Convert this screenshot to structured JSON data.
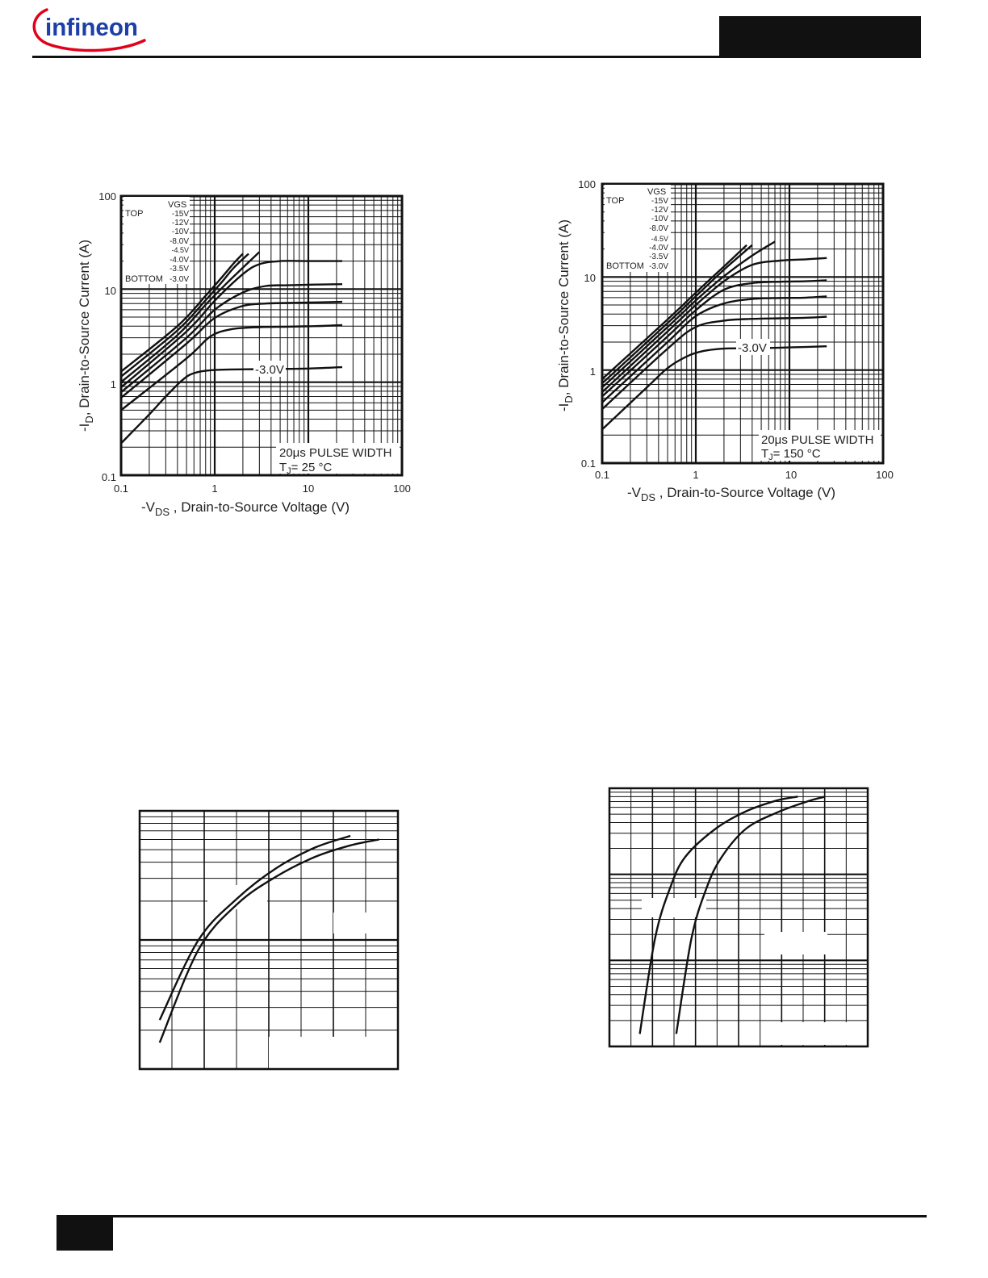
{
  "header": {
    "logo_text": "infineon",
    "brand_red": "#e2001a",
    "brand_blue": "#1c3fa8"
  },
  "chart_data": [
    {
      "type": "line",
      "xscale": "log",
      "yscale": "log",
      "xlim": [
        0.1,
        100
      ],
      "ylim": [
        0.1,
        100
      ],
      "x_ticks": [
        "0.1",
        "1",
        "10",
        "100"
      ],
      "y_ticks": [
        "0.1",
        "1",
        "10",
        "100"
      ],
      "xlabel_prefix": "-V",
      "xlabel_sub": "DS",
      "xlabel_suffix": " , Drain-to-Source Voltage (V)",
      "ylabel_prefix": "-I",
      "ylabel_sub": "D",
      "ylabel_suffix": ",  Drain-to-Source Current (A)",
      "legend": {
        "header": "VGS",
        "top_label": "TOP",
        "bottom_label": "BOTTOM",
        "entries": [
          "-15V",
          "-12V",
          "-10V",
          "-8.0V",
          "-4.5V",
          "-4.0V",
          "-3.5V",
          "-3.0V"
        ]
      },
      "annotation_line1": "20μs PULSE WIDTH",
      "annotation_line2_prefix": "T",
      "annotation_line2_sub": "J",
      "annotation_line2_suffix": "= 25 °C",
      "curve_label": "-3.0V",
      "series": [
        {
          "x": [
            0.1,
            0.4,
            0.8,
            1.2,
            1.6,
            2.0
          ],
          "y": [
            1.3,
            4.0,
            8.5,
            13.5,
            19.0,
            24.0
          ]
        },
        {
          "x": [
            0.1,
            0.4,
            0.8,
            1.2,
            1.6,
            2.3
          ],
          "y": [
            1.15,
            3.6,
            7.6,
            12.0,
            17.0,
            24.0
          ]
        },
        {
          "x": [
            0.1,
            0.4,
            0.8,
            1.3,
            2.0,
            3.0
          ],
          "y": [
            1.0,
            3.2,
            6.8,
            11.2,
            17.0,
            25.0
          ]
        },
        {
          "x": [
            0.1,
            0.5,
            1.0,
            2.0,
            3.0,
            5.0,
            10.0,
            23.0
          ],
          "y": [
            0.88,
            3.5,
            7.5,
            14.5,
            18.5,
            20.0,
            20.0,
            20.0
          ]
        },
        {
          "x": [
            0.1,
            0.5,
            1.0,
            2.0,
            3.5,
            6.0,
            12.0,
            23.0
          ],
          "y": [
            0.78,
            3.0,
            6.0,
            9.2,
            10.8,
            11.0,
            11.2,
            11.3
          ]
        },
        {
          "x": [
            0.1,
            0.5,
            1.0,
            2.0,
            3.5,
            6.0,
            12.0,
            23.0
          ],
          "y": [
            0.68,
            2.6,
            4.9,
            6.6,
            7.0,
            7.1,
            7.2,
            7.3
          ]
        },
        {
          "x": [
            0.1,
            0.5,
            0.9,
            1.5,
            3.0,
            6.0,
            12.0,
            23.0
          ],
          "y": [
            0.5,
            1.8,
            3.1,
            3.7,
            3.9,
            3.95,
            4.0,
            4.1
          ]
        },
        {
          "x": [
            0.1,
            0.2,
            0.3,
            0.45,
            0.6,
            1.0,
            3.0,
            10.0,
            23.0
          ],
          "y": [
            0.22,
            0.45,
            0.7,
            1.05,
            1.25,
            1.35,
            1.38,
            1.4,
            1.45
          ]
        }
      ]
    },
    {
      "type": "line",
      "xscale": "log",
      "yscale": "log",
      "xlim": [
        0.1,
        100
      ],
      "ylim": [
        0.1,
        100
      ],
      "x_ticks": [
        "0.1",
        "1",
        "10",
        "100"
      ],
      "y_ticks": [
        "0.1",
        "1",
        "10",
        "100"
      ],
      "xlabel_prefix": "-V",
      "xlabel_sub": "DS",
      "xlabel_suffix": " , Drain-to-Source Voltage (V)",
      "ylabel_prefix": "-I",
      "ylabel_sub": "D",
      "ylabel_suffix": ",  Drain-to-Source Current (A)",
      "legend": {
        "header": "VGS",
        "top_label": "TOP",
        "bottom_label": "BOTTOM",
        "entries": [
          "-15V",
          "-12V",
          "-10V",
          "-8.0V",
          "-4.5V",
          "-4.0V",
          "-3.5V",
          "-3.0V"
        ]
      },
      "annotation_line1": "20μs PULSE WIDTH",
      "annotation_line2_prefix": "T",
      "annotation_line2_sub": "J",
      "annotation_line2_suffix": "= 150 °C",
      "curve_label": "-3.0V",
      "series": [
        {
          "x": [
            0.1,
            0.5,
            1.0,
            2.0,
            3.5
          ],
          "y": [
            0.8,
            3.5,
            6.8,
            13.0,
            22.0
          ]
        },
        {
          "x": [
            0.1,
            0.5,
            1.0,
            2.0,
            4.0
          ],
          "y": [
            0.72,
            3.2,
            6.2,
            12.0,
            22.0
          ]
        },
        {
          "x": [
            0.1,
            0.5,
            1.0,
            2.0,
            4.0,
            7.0
          ],
          "y": [
            0.65,
            2.9,
            5.6,
            10.2,
            17.0,
            24.0
          ]
        },
        {
          "x": [
            0.1,
            0.5,
            1.0,
            2.0,
            4.0,
            8.0,
            15.0,
            25.0
          ],
          "y": [
            0.58,
            2.6,
            5.0,
            9.0,
            13.5,
            15.0,
            15.5,
            16.0
          ]
        },
        {
          "x": [
            0.1,
            0.5,
            1.0,
            2.0,
            4.0,
            8.0,
            15.0,
            25.0
          ],
          "y": [
            0.52,
            2.3,
            4.4,
            7.3,
            8.6,
            8.9,
            9.0,
            9.2
          ]
        },
        {
          "x": [
            0.1,
            0.5,
            1.0,
            2.0,
            4.0,
            8.0,
            15.0,
            25.0
          ],
          "y": [
            0.45,
            2.0,
            3.8,
            5.2,
            5.8,
            5.95,
            6.0,
            6.2
          ]
        },
        {
          "x": [
            0.1,
            0.5,
            1.0,
            2.0,
            4.0,
            8.0,
            15.0,
            25.0
          ],
          "y": [
            0.38,
            1.7,
            2.9,
            3.4,
            3.55,
            3.6,
            3.65,
            3.75
          ]
        },
        {
          "x": [
            0.1,
            0.3,
            0.5,
            0.8,
            1.2,
            2.0,
            5.0,
            10.0,
            25.0
          ],
          "y": [
            0.23,
            0.65,
            1.05,
            1.4,
            1.6,
            1.7,
            1.72,
            1.75,
            1.8
          ]
        }
      ]
    },
    {
      "type": "line",
      "xscale": "log",
      "yscale": "log",
      "series": [
        {
          "x": [
            1,
            2,
            4,
            8,
            16,
            30
          ],
          "y": [
            0.12,
            0.5,
            1.05,
            1.8,
            2.6,
            3.2
          ]
        },
        {
          "x": [
            1,
            2,
            4,
            8,
            16,
            30,
            50
          ],
          "y": [
            0.08,
            0.42,
            0.95,
            1.55,
            2.2,
            2.7,
            3.0
          ]
        }
      ]
    },
    {
      "type": "line",
      "xscale": "linear",
      "yscale": "log",
      "series": [
        {
          "x": [
            2.5,
            3.0,
            3.5,
            4.0,
            5.0,
            6.0,
            7.0,
            7.7
          ],
          "y": [
            0.07,
            0.9,
            3.5,
            8.0,
            17.0,
            27.0,
            36.0,
            40.0
          ]
        },
        {
          "x": [
            3.7,
            4.2,
            4.7,
            5.2,
            6.0,
            7.0,
            8.0,
            8.6
          ],
          "y": [
            0.07,
            0.9,
            3.5,
            8.0,
            17.0,
            26.0,
            35.0,
            40.0
          ]
        }
      ]
    }
  ]
}
